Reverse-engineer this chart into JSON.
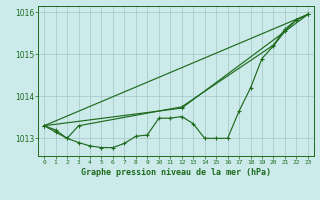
{
  "background_color": "#cceaea",
  "grid_color": "#aacccc",
  "line_color": "#1e6b1e",
  "title": "Graphe pression niveau de la mer (hPa)",
  "xlim": [
    -0.5,
    23.5
  ],
  "ylim": [
    1012.58,
    1016.15
  ],
  "yticks": [
    1013,
    1014,
    1015,
    1016
  ],
  "ytick_labels": [
    "1013",
    "1014",
    "1015",
    "1016"
  ],
  "xticks": [
    0,
    1,
    2,
    3,
    4,
    5,
    6,
    7,
    8,
    9,
    10,
    11,
    12,
    13,
    14,
    15,
    16,
    17,
    18,
    19,
    20,
    21,
    22,
    23
  ],
  "series": [
    {
      "x": [
        0,
        1,
        2,
        3,
        4,
        5,
        6,
        7,
        8,
        9,
        10,
        11,
        12,
        13,
        14,
        15,
        16,
        17,
        18,
        19,
        20,
        21,
        22,
        23
      ],
      "y": [
        1013.3,
        1013.2,
        1013.0,
        1012.9,
        1012.82,
        1012.78,
        1012.78,
        1012.88,
        1013.05,
        1013.08,
        1013.48,
        1013.48,
        1013.52,
        1013.35,
        1013.0,
        1013.0,
        1013.0,
        1013.65,
        1014.2,
        1014.9,
        1015.2,
        1015.55,
        1015.82,
        1015.95
      ]
    },
    {
      "x": [
        0,
        12,
        23
      ],
      "y": [
        1013.3,
        1013.72,
        1015.95
      ]
    },
    {
      "x": [
        0,
        23
      ],
      "y": [
        1013.3,
        1015.95
      ]
    },
    {
      "x": [
        0,
        1,
        2,
        3,
        12,
        20,
        21,
        22,
        23
      ],
      "y": [
        1013.3,
        1013.15,
        1013.0,
        1013.3,
        1013.75,
        1015.22,
        1015.6,
        1015.82,
        1015.95
      ]
    }
  ]
}
